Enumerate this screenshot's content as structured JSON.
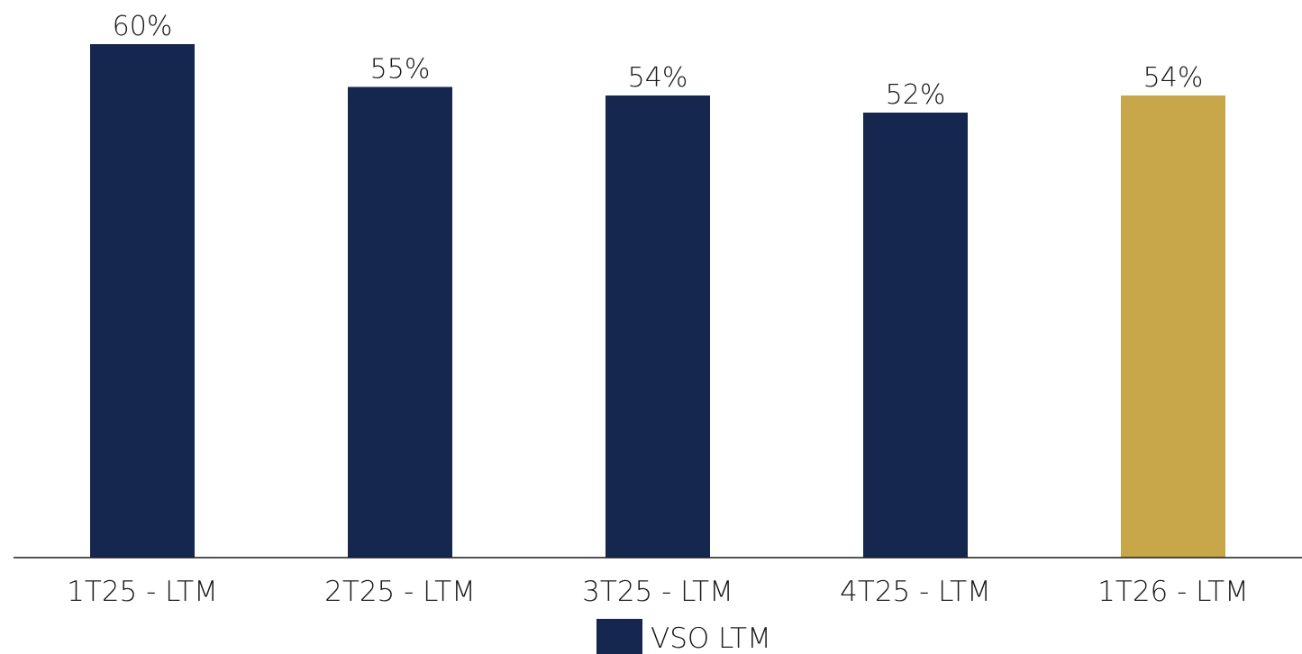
{
  "chart_data": {
    "type": "bar",
    "categories": [
      "1T25 - LTM",
      "2T25 - LTM",
      "3T25 - LTM",
      "4T25 - LTM",
      "1T26 - LTM"
    ],
    "series": [
      {
        "name": "VSO LTM",
        "values": [
          60,
          55,
          54,
          52,
          54
        ],
        "labels": [
          "60%",
          "55%",
          "54%",
          "52%",
          "54%"
        ],
        "color": "#15264f"
      }
    ],
    "highlight": {
      "category": "1T26 - LTM",
      "color": "#c8a74a"
    },
    "ylim": [
      0,
      60
    ],
    "grid": false,
    "legend_position": "bottom-center"
  }
}
